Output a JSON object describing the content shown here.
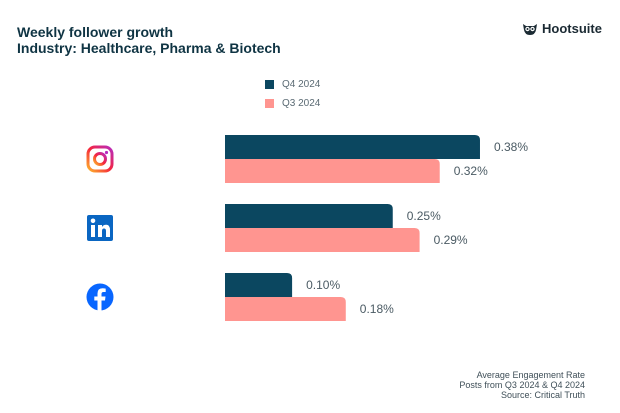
{
  "header": {
    "title": "Weekly follower growth",
    "subtitle": "Industry: Healthcare, Pharma & Biotech",
    "logo_text": "Hootsuite",
    "logo_icon": "owl-icon"
  },
  "footer": {
    "line1": "Average Engagement Rate",
    "line2": "Posts from Q3 2024 & Q4 2024",
    "line3": "Source: Critical Truth"
  },
  "chart_data": {
    "type": "bar",
    "orientation": "horizontal",
    "title": "Weekly follower growth",
    "subtitle": "Industry: Healthcare, Pharma & Biotech",
    "categories": [
      "Instagram",
      "LinkedIn",
      "Facebook"
    ],
    "category_icons": [
      "instagram-icon",
      "linkedin-icon",
      "facebook-icon"
    ],
    "series": [
      {
        "name": "Q4 2024",
        "color": "#0b4760",
        "values": [
          0.38,
          0.25,
          0.1
        ],
        "labels": [
          "0.38%",
          "0.25%",
          "0.10%"
        ]
      },
      {
        "name": "Q3 2024",
        "color": "#ff9590",
        "values": [
          0.32,
          0.29,
          0.18
        ],
        "labels": [
          "0.32%",
          "0.29%",
          "0.18%"
        ]
      }
    ],
    "unit": "%",
    "legend": "top-center",
    "grid": false,
    "xlabel": "",
    "ylabel": "",
    "xlim": [
      0,
      0.5
    ]
  }
}
